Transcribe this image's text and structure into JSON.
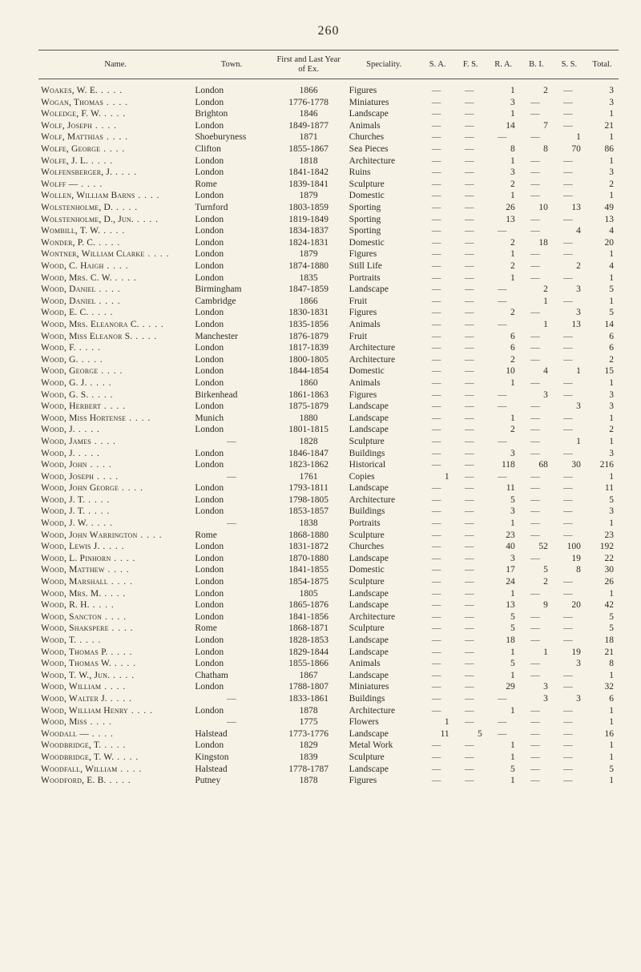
{
  "page_number": "260",
  "columns": [
    "Name.",
    "Town.",
    "First and Last Year of Ex.",
    "Speciality.",
    "S. A.",
    "F. S.",
    "R. A.",
    "B. I.",
    "S. S.",
    "Total."
  ],
  "rows": [
    {
      "name": "Woakes, W. E.",
      "town": "London",
      "year": "1866",
      "spec": "Figures",
      "sa": "—",
      "fs": "—",
      "ra": "1",
      "bi": "2",
      "ss": "—",
      "total": "3"
    },
    {
      "name": "Wogan, Thomas",
      "town": "London",
      "year": "1776-1778",
      "spec": "Miniatures",
      "sa": "—",
      "fs": "—",
      "ra": "3",
      "bi": "—",
      "ss": "—",
      "total": "3"
    },
    {
      "name": "Woledge, F. W.",
      "town": "Brighton",
      "year": "1846",
      "spec": "Landscape",
      "sa": "—",
      "fs": "—",
      "ra": "1",
      "bi": "—",
      "ss": "—",
      "total": "1"
    },
    {
      "name": "Wolf, Joseph",
      "town": "London",
      "year": "1849-1877",
      "spec": "Animals",
      "sa": "—",
      "fs": "—",
      "ra": "14",
      "bi": "7",
      "ss": "—",
      "total": "21"
    },
    {
      "name": "Wolf, Matthias",
      "town": "Shoeburyness",
      "year": "1871",
      "spec": "Churches",
      "sa": "—",
      "fs": "—",
      "ra": "—",
      "bi": "—",
      "ss": "1",
      "total": "1"
    },
    {
      "name": "Wolfe, George",
      "town": "Clifton",
      "year": "1855-1867",
      "spec": "Sea Pieces",
      "sa": "—",
      "fs": "—",
      "ra": "8",
      "bi": "8",
      "ss": "70",
      "total": "86"
    },
    {
      "name": "Wolfe, J. L.",
      "town": "London",
      "year": "1818",
      "spec": "Architecture",
      "sa": "—",
      "fs": "—",
      "ra": "1",
      "bi": "—",
      "ss": "—",
      "total": "1"
    },
    {
      "name": "Wolfensberger, J.",
      "town": "London",
      "year": "1841-1842",
      "spec": "Ruins",
      "sa": "—",
      "fs": "—",
      "ra": "3",
      "bi": "—",
      "ss": "—",
      "total": "3"
    },
    {
      "name": "Wolff —",
      "town": "Rome",
      "year": "1839-1841",
      "spec": "Sculpture",
      "sa": "—",
      "fs": "—",
      "ra": "2",
      "bi": "—",
      "ss": "—",
      "total": "2"
    },
    {
      "name": "Wollen, William Barns",
      "town": "London",
      "year": "1879",
      "spec": "Domestic",
      "sa": "—",
      "fs": "—",
      "ra": "1",
      "bi": "—",
      "ss": "—",
      "total": "1"
    },
    {
      "name": "Wolstenholme, D.",
      "town": "Turnford",
      "year": "1803-1859",
      "spec": "Sporting",
      "sa": "—",
      "fs": "—",
      "ra": "26",
      "bi": "10",
      "ss": "13",
      "total": "49"
    },
    {
      "name": "Wolstenholme, D., Jun.",
      "town": "London",
      "year": "1819-1849",
      "spec": "Sporting",
      "sa": "—",
      "fs": "—",
      "ra": "13",
      "bi": "—",
      "ss": "—",
      "total": "13"
    },
    {
      "name": "Wombill, T. W.",
      "town": "London",
      "year": "1834-1837",
      "spec": "Sporting",
      "sa": "—",
      "fs": "—",
      "ra": "—",
      "bi": "—",
      "ss": "4",
      "total": "4"
    },
    {
      "name": "Wonder, P. C.",
      "town": "London",
      "year": "1824-1831",
      "spec": "Domestic",
      "sa": "—",
      "fs": "—",
      "ra": "2",
      "bi": "18",
      "ss": "—",
      "total": "20"
    },
    {
      "name": "Wontner, William Clarke",
      "town": "London",
      "year": "1879",
      "spec": "Figures",
      "sa": "—",
      "fs": "—",
      "ra": "1",
      "bi": "—",
      "ss": "—",
      "total": "1"
    },
    {
      "name": "Wood, C. Haigh",
      "town": "London",
      "year": "1874-1880",
      "spec": "Still Life",
      "sa": "—",
      "fs": "—",
      "ra": "2",
      "bi": "—",
      "ss": "2",
      "total": "4"
    },
    {
      "name": "Wood, Mrs. C. W.",
      "town": "London",
      "year": "1835",
      "spec": "Portraits",
      "sa": "—",
      "fs": "—",
      "ra": "1",
      "bi": "—",
      "ss": "—",
      "total": "1"
    },
    {
      "name": "Wood, Daniel",
      "town": "Birmingham",
      "year": "1847-1859",
      "spec": "Landscape",
      "sa": "—",
      "fs": "—",
      "ra": "—",
      "bi": "2",
      "ss": "3",
      "total": "5"
    },
    {
      "name": "Wood, Daniel",
      "town": "Cambridge",
      "year": "1866",
      "spec": "Fruit",
      "sa": "—",
      "fs": "—",
      "ra": "—",
      "bi": "1",
      "ss": "—",
      "total": "1"
    },
    {
      "name": "Wood, E. C.",
      "town": "London",
      "year": "1830-1831",
      "spec": "Figures",
      "sa": "—",
      "fs": "—",
      "ra": "2",
      "bi": "—",
      "ss": "3",
      "total": "5"
    },
    {
      "name": "Wood, Mrs. Eleanora C.",
      "town": "London",
      "year": "1835-1856",
      "spec": "Animals",
      "sa": "—",
      "fs": "—",
      "ra": "—",
      "bi": "1",
      "ss": "13",
      "total": "14"
    },
    {
      "name": "Wood, Miss Eleanor S.",
      "town": "Manchester",
      "year": "1876-1879",
      "spec": "Fruit",
      "sa": "—",
      "fs": "—",
      "ra": "6",
      "bi": "—",
      "ss": "—",
      "total": "6"
    },
    {
      "name": "Wood, F.",
      "town": "London",
      "year": "1817-1839",
      "spec": "Architecture",
      "sa": "—",
      "fs": "—",
      "ra": "6",
      "bi": "—",
      "ss": "—",
      "total": "6"
    },
    {
      "name": "Wood, G.",
      "town": "London",
      "year": "1800-1805",
      "spec": "Architecture",
      "sa": "—",
      "fs": "—",
      "ra": "2",
      "bi": "—",
      "ss": "—",
      "total": "2"
    },
    {
      "name": "Wood, George",
      "town": "London",
      "year": "1844-1854",
      "spec": "Domestic",
      "sa": "—",
      "fs": "—",
      "ra": "10",
      "bi": "4",
      "ss": "1",
      "total": "15"
    },
    {
      "name": "Wood, G. J.",
      "town": "London",
      "year": "1860",
      "spec": "Animals",
      "sa": "—",
      "fs": "—",
      "ra": "1",
      "bi": "—",
      "ss": "—",
      "total": "1"
    },
    {
      "name": "Wood, G. S.",
      "town": "Birkenhead",
      "year": "1861-1863",
      "spec": "Figures",
      "sa": "—",
      "fs": "—",
      "ra": "—",
      "bi": "3",
      "ss": "—",
      "total": "3"
    },
    {
      "name": "Wood, Herbert",
      "town": "London",
      "year": "1875-1879",
      "spec": "Landscape",
      "sa": "—",
      "fs": "—",
      "ra": "—",
      "bi": "—",
      "ss": "3",
      "total": "3"
    },
    {
      "name": "Wood, Miss Hortense",
      "town": "Munich",
      "year": "1880",
      "spec": "Landscape",
      "sa": "—",
      "fs": "—",
      "ra": "1",
      "bi": "—",
      "ss": "—",
      "total": "1"
    },
    {
      "name": "Wood, J.",
      "town": "London",
      "year": "1801-1815",
      "spec": "Landscape",
      "sa": "—",
      "fs": "—",
      "ra": "2",
      "bi": "—",
      "ss": "—",
      "total": "2"
    },
    {
      "name": "Wood, James",
      "town": "—",
      "year": "1828",
      "spec": "Sculpture",
      "sa": "—",
      "fs": "—",
      "ra": "—",
      "bi": "—",
      "ss": "1",
      "total": "1"
    },
    {
      "name": "Wood, J.",
      "town": "London",
      "year": "1846-1847",
      "spec": "Buildings",
      "sa": "—",
      "fs": "—",
      "ra": "3",
      "bi": "—",
      "ss": "—",
      "total": "3"
    },
    {
      "name": "Wood, John",
      "town": "London",
      "year": "1823-1862",
      "spec": "Historical",
      "sa": "—",
      "fs": "—",
      "ra": "118",
      "bi": "68",
      "ss": "30",
      "total": "216"
    },
    {
      "name": "Wood, Joseph",
      "town": "—",
      "year": "1761",
      "spec": "Copies",
      "sa": "1",
      "fs": "—",
      "ra": "—",
      "bi": "—",
      "ss": "—",
      "total": "1"
    },
    {
      "name": "Wood, John George",
      "town": "London",
      "year": "1793-1811",
      "spec": "Landscape",
      "sa": "—",
      "fs": "—",
      "ra": "11",
      "bi": "—",
      "ss": "—",
      "total": "11"
    },
    {
      "name": "Wood, J. T.",
      "town": "London",
      "year": "1798-1805",
      "spec": "Architecture",
      "sa": "—",
      "fs": "—",
      "ra": "5",
      "bi": "—",
      "ss": "—",
      "total": "5"
    },
    {
      "name": "Wood, J. T.",
      "town": "London",
      "year": "1853-1857",
      "spec": "Buildings",
      "sa": "—",
      "fs": "—",
      "ra": "3",
      "bi": "—",
      "ss": "—",
      "total": "3"
    },
    {
      "name": "Wood, J. W.",
      "town": "—",
      "year": "1838",
      "spec": "Portraits",
      "sa": "—",
      "fs": "—",
      "ra": "1",
      "bi": "—",
      "ss": "—",
      "total": "1"
    },
    {
      "name": "Wood, John Warrington",
      "town": "Rome",
      "year": "1868-1880",
      "spec": "Sculpture",
      "sa": "—",
      "fs": "—",
      "ra": "23",
      "bi": "—",
      "ss": "—",
      "total": "23"
    },
    {
      "name": "Wood, Lewis J.",
      "town": "London",
      "year": "1831-1872",
      "spec": "Churches",
      "sa": "—",
      "fs": "—",
      "ra": "40",
      "bi": "52",
      "ss": "100",
      "total": "192"
    },
    {
      "name": "Wood, L. Pinhorn",
      "town": "London",
      "year": "1870-1880",
      "spec": "Landscape",
      "sa": "—",
      "fs": "—",
      "ra": "3",
      "bi": "—",
      "ss": "19",
      "total": "22"
    },
    {
      "name": "Wood, Matthew",
      "town": "London",
      "year": "1841-1855",
      "spec": "Domestic",
      "sa": "—",
      "fs": "—",
      "ra": "17",
      "bi": "5",
      "ss": "8",
      "total": "30"
    },
    {
      "name": "Wood, Marshall",
      "town": "London",
      "year": "1854-1875",
      "spec": "Sculpture",
      "sa": "—",
      "fs": "—",
      "ra": "24",
      "bi": "2",
      "ss": "—",
      "total": "26"
    },
    {
      "name": "Wood, Mrs. M.",
      "town": "London",
      "year": "1805",
      "spec": "Landscape",
      "sa": "—",
      "fs": "—",
      "ra": "1",
      "bi": "—",
      "ss": "—",
      "total": "1"
    },
    {
      "name": "Wood, R. H.",
      "town": "London",
      "year": "1865-1876",
      "spec": "Landscape",
      "sa": "—",
      "fs": "—",
      "ra": "13",
      "bi": "9",
      "ss": "20",
      "total": "42"
    },
    {
      "name": "Wood, Sancton",
      "town": "London",
      "year": "1841-1856",
      "spec": "Architecture",
      "sa": "—",
      "fs": "—",
      "ra": "5",
      "bi": "—",
      "ss": "—",
      "total": "5"
    },
    {
      "name": "Wood, Shakspere",
      "town": "Rome",
      "year": "1868-1871",
      "spec": "Sculpture",
      "sa": "—",
      "fs": "—",
      "ra": "5",
      "bi": "—",
      "ss": "—",
      "total": "5"
    },
    {
      "name": "Wood, T.",
      "town": "London",
      "year": "1828-1853",
      "spec": "Landscape",
      "sa": "—",
      "fs": "—",
      "ra": "18",
      "bi": "—",
      "ss": "—",
      "total": "18"
    },
    {
      "name": "Wood, Thomas P.",
      "town": "London",
      "year": "1829-1844",
      "spec": "Landscape",
      "sa": "—",
      "fs": "—",
      "ra": "1",
      "bi": "1",
      "ss": "19",
      "total": "21"
    },
    {
      "name": "Wood, Thomas W.",
      "town": "London",
      "year": "1855-1866",
      "spec": "Animals",
      "sa": "—",
      "fs": "—",
      "ra": "5",
      "bi": "—",
      "ss": "3",
      "total": "8"
    },
    {
      "name": "Wood, T. W., Jun.",
      "town": "Chatham",
      "year": "1867",
      "spec": "Landscape",
      "sa": "—",
      "fs": "—",
      "ra": "1",
      "bi": "—",
      "ss": "—",
      "total": "1"
    },
    {
      "name": "Wood, William",
      "town": "London",
      "year": "1788-1807",
      "spec": "Miniatures",
      "sa": "—",
      "fs": "—",
      "ra": "29",
      "bi": "3",
      "ss": "—",
      "total": "32"
    },
    {
      "name": "Wood, Walter J.",
      "town": "—",
      "year": "1833-1861",
      "spec": "Buildings",
      "sa": "—",
      "fs": "—",
      "ra": "—",
      "bi": "3",
      "ss": "3",
      "total": "6"
    },
    {
      "name": "Wood, William Henry",
      "town": "London",
      "year": "1878",
      "spec": "Architecture",
      "sa": "—",
      "fs": "—",
      "ra": "1",
      "bi": "—",
      "ss": "—",
      "total": "1"
    },
    {
      "name": "Wood, Miss",
      "town": "—",
      "year": "1775",
      "spec": "Flowers",
      "sa": "1",
      "fs": "—",
      "ra": "—",
      "bi": "—",
      "ss": "—",
      "total": "1"
    },
    {
      "name": "Woodall —",
      "town": "Halstead",
      "year": "1773-1776",
      "spec": "Landscape",
      "sa": "11",
      "fs": "5",
      "ra": "—",
      "bi": "—",
      "ss": "—",
      "total": "16"
    },
    {
      "name": "Woodbridge, T.",
      "town": "London",
      "year": "1829",
      "spec": "Metal Work",
      "sa": "—",
      "fs": "—",
      "ra": "1",
      "bi": "—",
      "ss": "—",
      "total": "1"
    },
    {
      "name": "Woodbridge, T. W.",
      "town": "Kingston",
      "year": "1839",
      "spec": "Sculpture",
      "sa": "—",
      "fs": "—",
      "ra": "1",
      "bi": "—",
      "ss": "—",
      "total": "1"
    },
    {
      "name": "Woodfall, William",
      "town": "Halstead",
      "year": "1778-1787",
      "spec": "Landscape",
      "sa": "—",
      "fs": "—",
      "ra": "5",
      "bi": "—",
      "ss": "—",
      "total": "5"
    },
    {
      "name": "Woodford, E. B.",
      "town": "Putney",
      "year": "1878",
      "spec": "Figures",
      "sa": "—",
      "fs": "—",
      "ra": "1",
      "bi": "—",
      "ss": "—",
      "total": "1"
    }
  ],
  "colors": {
    "background": "#f6f2e6",
    "text": "#2a2a25",
    "rule": "#555555"
  }
}
